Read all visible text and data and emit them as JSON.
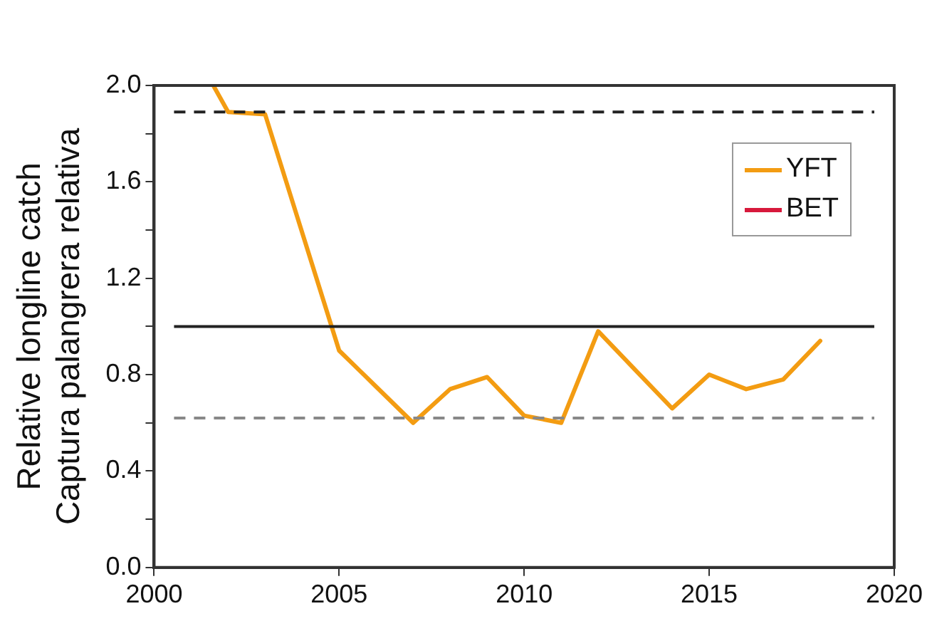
{
  "chart_data": {
    "type": "line",
    "ylabel": "Relative longline catch\nCaptura palangrera relativa",
    "xlim": [
      2000,
      2020
    ],
    "xticks": [
      2000,
      2005,
      2010,
      2015,
      2020
    ],
    "ylim": [
      0,
      2
    ],
    "yticks": [
      {
        "value": 0,
        "label": "0.0"
      },
      {
        "value": 0.2,
        "label": null
      },
      {
        "value": 0.4,
        "label": "0.4"
      },
      {
        "value": 0.6,
        "label": null
      },
      {
        "value": 0.8,
        "label": "0.8"
      },
      {
        "value": 1,
        "label": null
      },
      {
        "value": 1.2,
        "label": "1.2"
      },
      {
        "value": 1.4,
        "label": null
      },
      {
        "value": 1.6,
        "label": "1.6"
      },
      {
        "value": 1.8,
        "label": null
      },
      {
        "value": 2,
        "label": "2.0"
      }
    ],
    "series": [
      {
        "name": "YFT",
        "color": "#f39c12",
        "x": [
          2001.6,
          2002,
          2003,
          2005,
          2006,
          2007,
          2008,
          2009,
          2010,
          2011,
          2012,
          2013,
          2014,
          2015,
          2016,
          2017,
          2018
        ],
        "values": [
          2.0,
          1.89,
          1.88,
          0.9,
          0.75,
          0.6,
          0.74,
          0.79,
          0.63,
          0.6,
          0.98,
          0.82,
          0.66,
          0.8,
          0.74,
          0.78,
          0.94
        ]
      },
      {
        "name": "BET",
        "color": "#d7193c"
      }
    ],
    "ref_lines": [
      {
        "axis": "y",
        "value": 1.89,
        "color": "#222222",
        "line_style": "dashed"
      },
      {
        "axis": "y",
        "value": 1.0,
        "color": "#222222",
        "line_style": "solid"
      },
      {
        "axis": "y",
        "value": 0.62,
        "color": "#888888",
        "line_style": "dashed"
      }
    ],
    "grid": false,
    "legend": "top right",
    "marker": "none",
    "line_style": "solid"
  }
}
